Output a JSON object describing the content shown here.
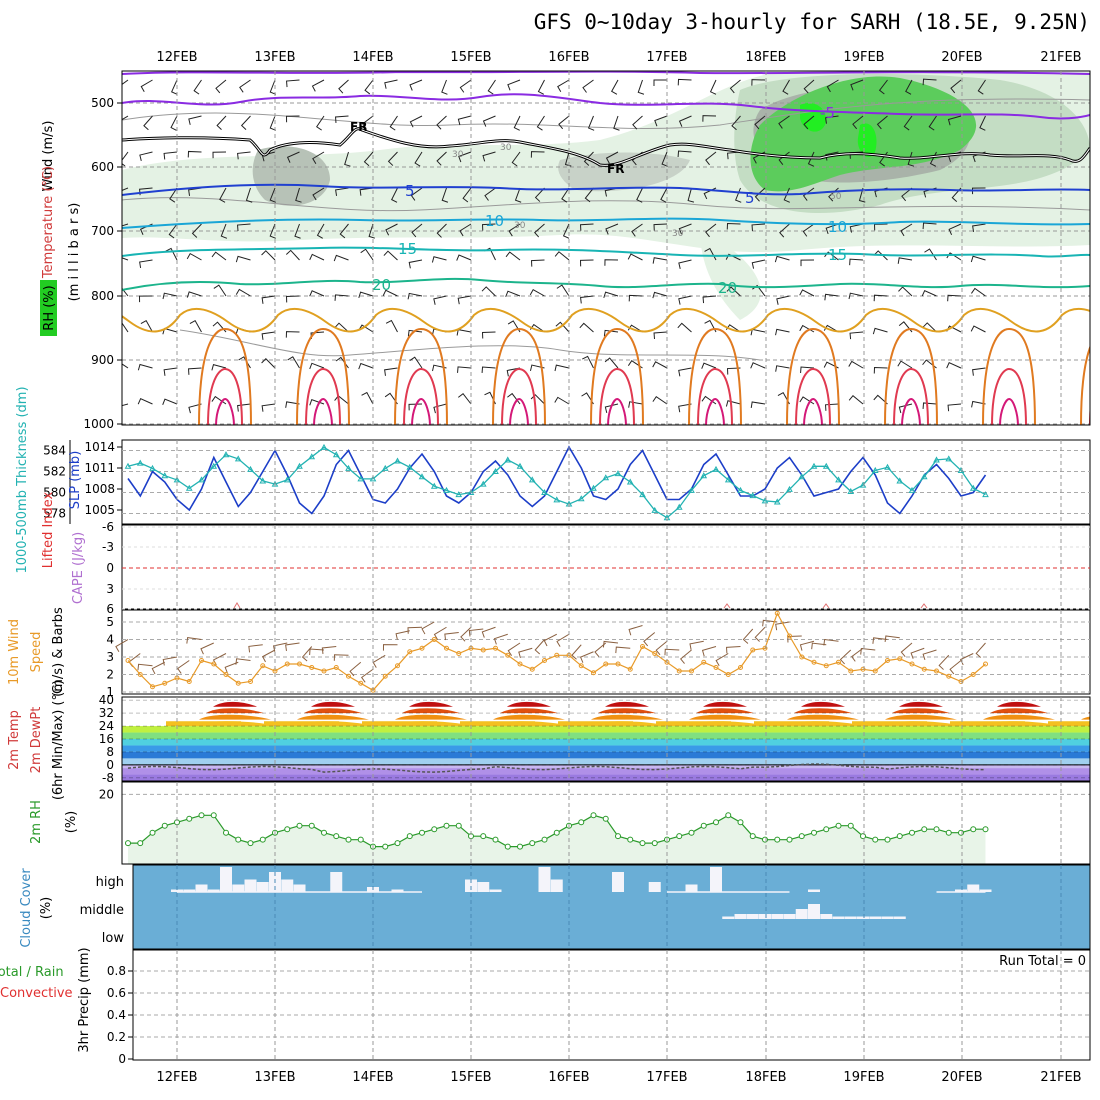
{
  "title": "GFS 0~10day 3-hourly for SARH (18.5E, 9.25N)",
  "colors": {
    "rh_light": "#e4f2e4",
    "rh_mid": "#c4ddc4",
    "rh_gray": "#a9b3a9",
    "rh_green": "#5ccc5c",
    "rh_bright": "#22ee22",
    "temp_cold": "#8a2be2",
    "temp_blue": "#2040d0",
    "temp_cyan": "#1aa6d6",
    "temp_teal": "#18b4b4",
    "temp_green": "#1cb48c",
    "temp_warm1": "#e0a020",
    "temp_warm2": "#e07a20",
    "temp_warm3": "#e03a50",
    "temp_warm4": "#d41878",
    "slp": "#1c3ec8",
    "thickness": "#22b2b2",
    "lifted": "#e03030",
    "cape": "#b070d0",
    "wind10": "#e89a28",
    "barb10": "#8a6040",
    "rh2m": "#2a9a2a",
    "rh2m_fill": "#e8f4e8",
    "cloud_bg": "#6aaed6",
    "cloud_bar": "#f4f4fa"
  },
  "dates": [
    "12FEB",
    "13FEB",
    "14FEB",
    "15FEB",
    "16FEB",
    "17FEB",
    "18FEB",
    "19FEB",
    "20FEB",
    "21FEB"
  ],
  "panels": {
    "upper": {
      "label_wind": "Wind (m/s)",
      "label_temp": "Temperature (°C)",
      "label_rh": "RH (%)",
      "label_mb": "(m i l l i b a r s)",
      "pressure_ticks": [
        "500",
        "600",
        "700",
        "800",
        "900",
        "1000"
      ],
      "contour_labels": {
        "minus5a": "-5",
        "minus5b": "-5",
        "five_a": "5",
        "five_b": "5",
        "ten_a": "10",
        "ten_b": "10",
        "fifteen_a": "15",
        "fifteen_b": "15",
        "twenty_a": "20",
        "twenty_b": "20",
        "fr_a": "FR",
        "fr_b": "FR",
        "rh30a": "30",
        "rh30b": "30",
        "rh30c": "30",
        "rh30d": "30",
        "rh50": "50"
      }
    },
    "pressure": {
      "label_thick": "1000-500mb Thickness (dm)",
      "label_slp": "SLP (mb)",
      "thick_ticks": [
        "584",
        "582",
        "580",
        "578"
      ],
      "slp_ticks": [
        "1014",
        "1011",
        "1008",
        "1005"
      ]
    },
    "stability": {
      "label_li": "Lifted Index",
      "label_cape": "CAPE (J/kg)",
      "li_ticks": [
        "-6",
        "-3",
        "0",
        "3",
        "6"
      ]
    },
    "wind10m": {
      "label_a": "10m Wind",
      "label_b": "Speed",
      "label_c": "(m/s) & Barbs",
      "ticks": [
        "5",
        "4",
        "3",
        "2",
        "1"
      ]
    },
    "temp2m": {
      "label_a": "2m Temp",
      "label_b": "2m DewPt",
      "label_c": "(6hr Min/Max) (°C)",
      "ticks": [
        "40",
        "32",
        "24",
        "16",
        "8",
        "0",
        "-8"
      ]
    },
    "rh2m": {
      "label_a": "2m RH",
      "label_b": "(%)",
      "ticks": [
        "20"
      ]
    },
    "cloud": {
      "label_a": "Cloud Cover",
      "label_b": "(%)",
      "levels": [
        "high",
        "middle",
        "low"
      ]
    },
    "precip": {
      "label_a": "Total / Rain",
      "label_b": "Convective",
      "label_c": "3hr Precip (mm)",
      "run_total": "Run Total = 0",
      "ticks": [
        "0.8",
        "0.6",
        "0.4",
        "0.2",
        "0"
      ]
    }
  },
  "chart_data": [
    {
      "type": "line",
      "title": "1000-500mb Thickness (dm) / SLP (mb)",
      "x_unit": "3-hourly steps from 11FEB 12Z",
      "series": [
        {
          "name": "SLP (mb)",
          "values": [
            1009.5,
            1007,
            1010.5,
            1009,
            1006.5,
            1005,
            1008,
            1012.5,
            1009,
            1005.5,
            1007.5,
            1010.5,
            1013.5,
            1010,
            1006,
            1004.5,
            1007,
            1011.5,
            1013.5,
            1010,
            1006.5,
            1006,
            1008,
            1011,
            1013,
            1010.5,
            1007,
            1006,
            1007.5,
            1010.5,
            1012,
            1010,
            1007,
            1005.5,
            1007,
            1010.5,
            1014,
            1011,
            1007,
            1006.5,
            1008,
            1011.5,
            1013.5,
            1010,
            1006.5,
            1006.5,
            1008,
            1011.5,
            1013,
            1010,
            1007,
            1007,
            1008,
            1011,
            1012.5,
            1010,
            1007,
            1007.5,
            1008,
            1010.5,
            1012.5,
            1010,
            1006,
            1004.5,
            1007,
            1010,
            1011.5,
            1009.5,
            1007,
            1007.5,
            1010
          ]
        },
        {
          "name": "1000-500mb Thickness (dm)",
          "values": [
            582.5,
            582.8,
            582.3,
            581.6,
            581.2,
            580.4,
            581.2,
            582.5,
            583.6,
            583.2,
            582.2,
            581.1,
            580.8,
            581.2,
            582.5,
            583.4,
            584.3,
            583.6,
            582.3,
            581.3,
            581.3,
            582.3,
            583.0,
            582.4,
            581.5,
            580.6,
            580.2,
            579.8,
            580.0,
            580.8,
            582.0,
            583.1,
            582.5,
            581.2,
            580.0,
            579.3,
            578.9,
            579.4,
            580.4,
            581.4,
            581.8,
            581.0,
            579.8,
            578.3,
            577.6,
            578.6,
            580.2,
            581.6,
            582.2,
            581.2,
            580.2,
            579.7,
            579.2,
            579.1,
            580.3,
            581.5,
            582.5,
            582.5,
            581.2,
            580.1,
            580.7,
            582.1,
            582.4,
            581.1,
            580.2,
            581.5,
            583.1,
            583.2,
            582.1,
            580.4,
            579.8
          ]
        }
      ],
      "y_left_range": [
        577,
        585
      ],
      "y_right_range": [
        1003,
        1015
      ]
    },
    {
      "type": "line",
      "title": "10m Wind Speed (m/s)",
      "ylim": [
        1,
        5.5
      ],
      "values": [
        2.8,
        2.0,
        1.3,
        1.5,
        1.8,
        1.6,
        2.8,
        2.6,
        2.0,
        1.5,
        1.6,
        2.5,
        2.2,
        2.6,
        2.6,
        2.4,
        2.2,
        2.4,
        1.9,
        1.5,
        1.1,
        1.9,
        2.5,
        3.3,
        3.5,
        4.0,
        3.5,
        3.2,
        3.5,
        3.4,
        3.5,
        3.1,
        2.6,
        2.3,
        2.8,
        3.1,
        3.1,
        2.5,
        2.1,
        2.6,
        2.6,
        2.3,
        3.6,
        3.2,
        2.7,
        2.2,
        2.2,
        2.7,
        2.4,
        2.0,
        2.4,
        3.4,
        3.5,
        5.5,
        4.2,
        3.0,
        2.7,
        2.5,
        2.7,
        2.2,
        2.3,
        2.2,
        2.8,
        2.9,
        2.6,
        2.3,
        2.2,
        1.9,
        1.6,
        2.0,
        2.6
      ]
    },
    {
      "type": "line",
      "title": "2m RH (%)",
      "values": [
        6,
        6,
        9,
        11,
        12,
        13,
        14,
        14,
        9,
        7,
        6,
        7,
        9,
        10,
        11,
        11,
        9,
        8,
        7,
        7,
        5,
        5,
        6,
        8,
        9,
        10,
        11,
        11,
        8,
        8,
        7,
        5,
        5,
        6,
        7,
        9,
        11,
        12,
        14,
        13,
        8,
        7,
        6,
        6,
        7,
        8,
        9,
        11,
        12,
        14,
        12,
        8,
        7,
        7,
        7,
        8,
        9,
        10,
        11,
        11,
        8,
        7,
        7,
        8,
        9,
        10,
        10,
        9,
        9,
        10,
        10
      ]
    }
  ]
}
